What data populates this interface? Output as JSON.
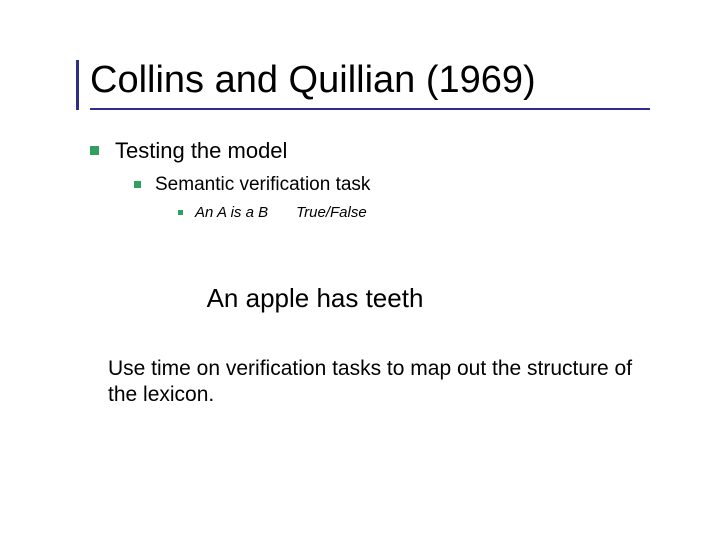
{
  "colors": {
    "accent_bar": "#2f2f8a",
    "underline": "#2f2f8a",
    "bullet": "#2fa060",
    "text": "#000000",
    "background": "#ffffff"
  },
  "typography": {
    "title_fontsize": 38,
    "level1_fontsize": 22,
    "level2_fontsize": 19,
    "level3_fontsize": 15,
    "example_fontsize": 26,
    "closing_fontsize": 21,
    "font_family": "Arial"
  },
  "title": "Collins and Quillian (1969)",
  "bullets": {
    "level1": "Testing the model",
    "level2": "Semantic verification task",
    "level3_part1": "An A is a B",
    "level3_part2": "True/False"
  },
  "example": "An apple has teeth",
  "closing": "Use time on verification tasks to map out the structure of the lexicon."
}
